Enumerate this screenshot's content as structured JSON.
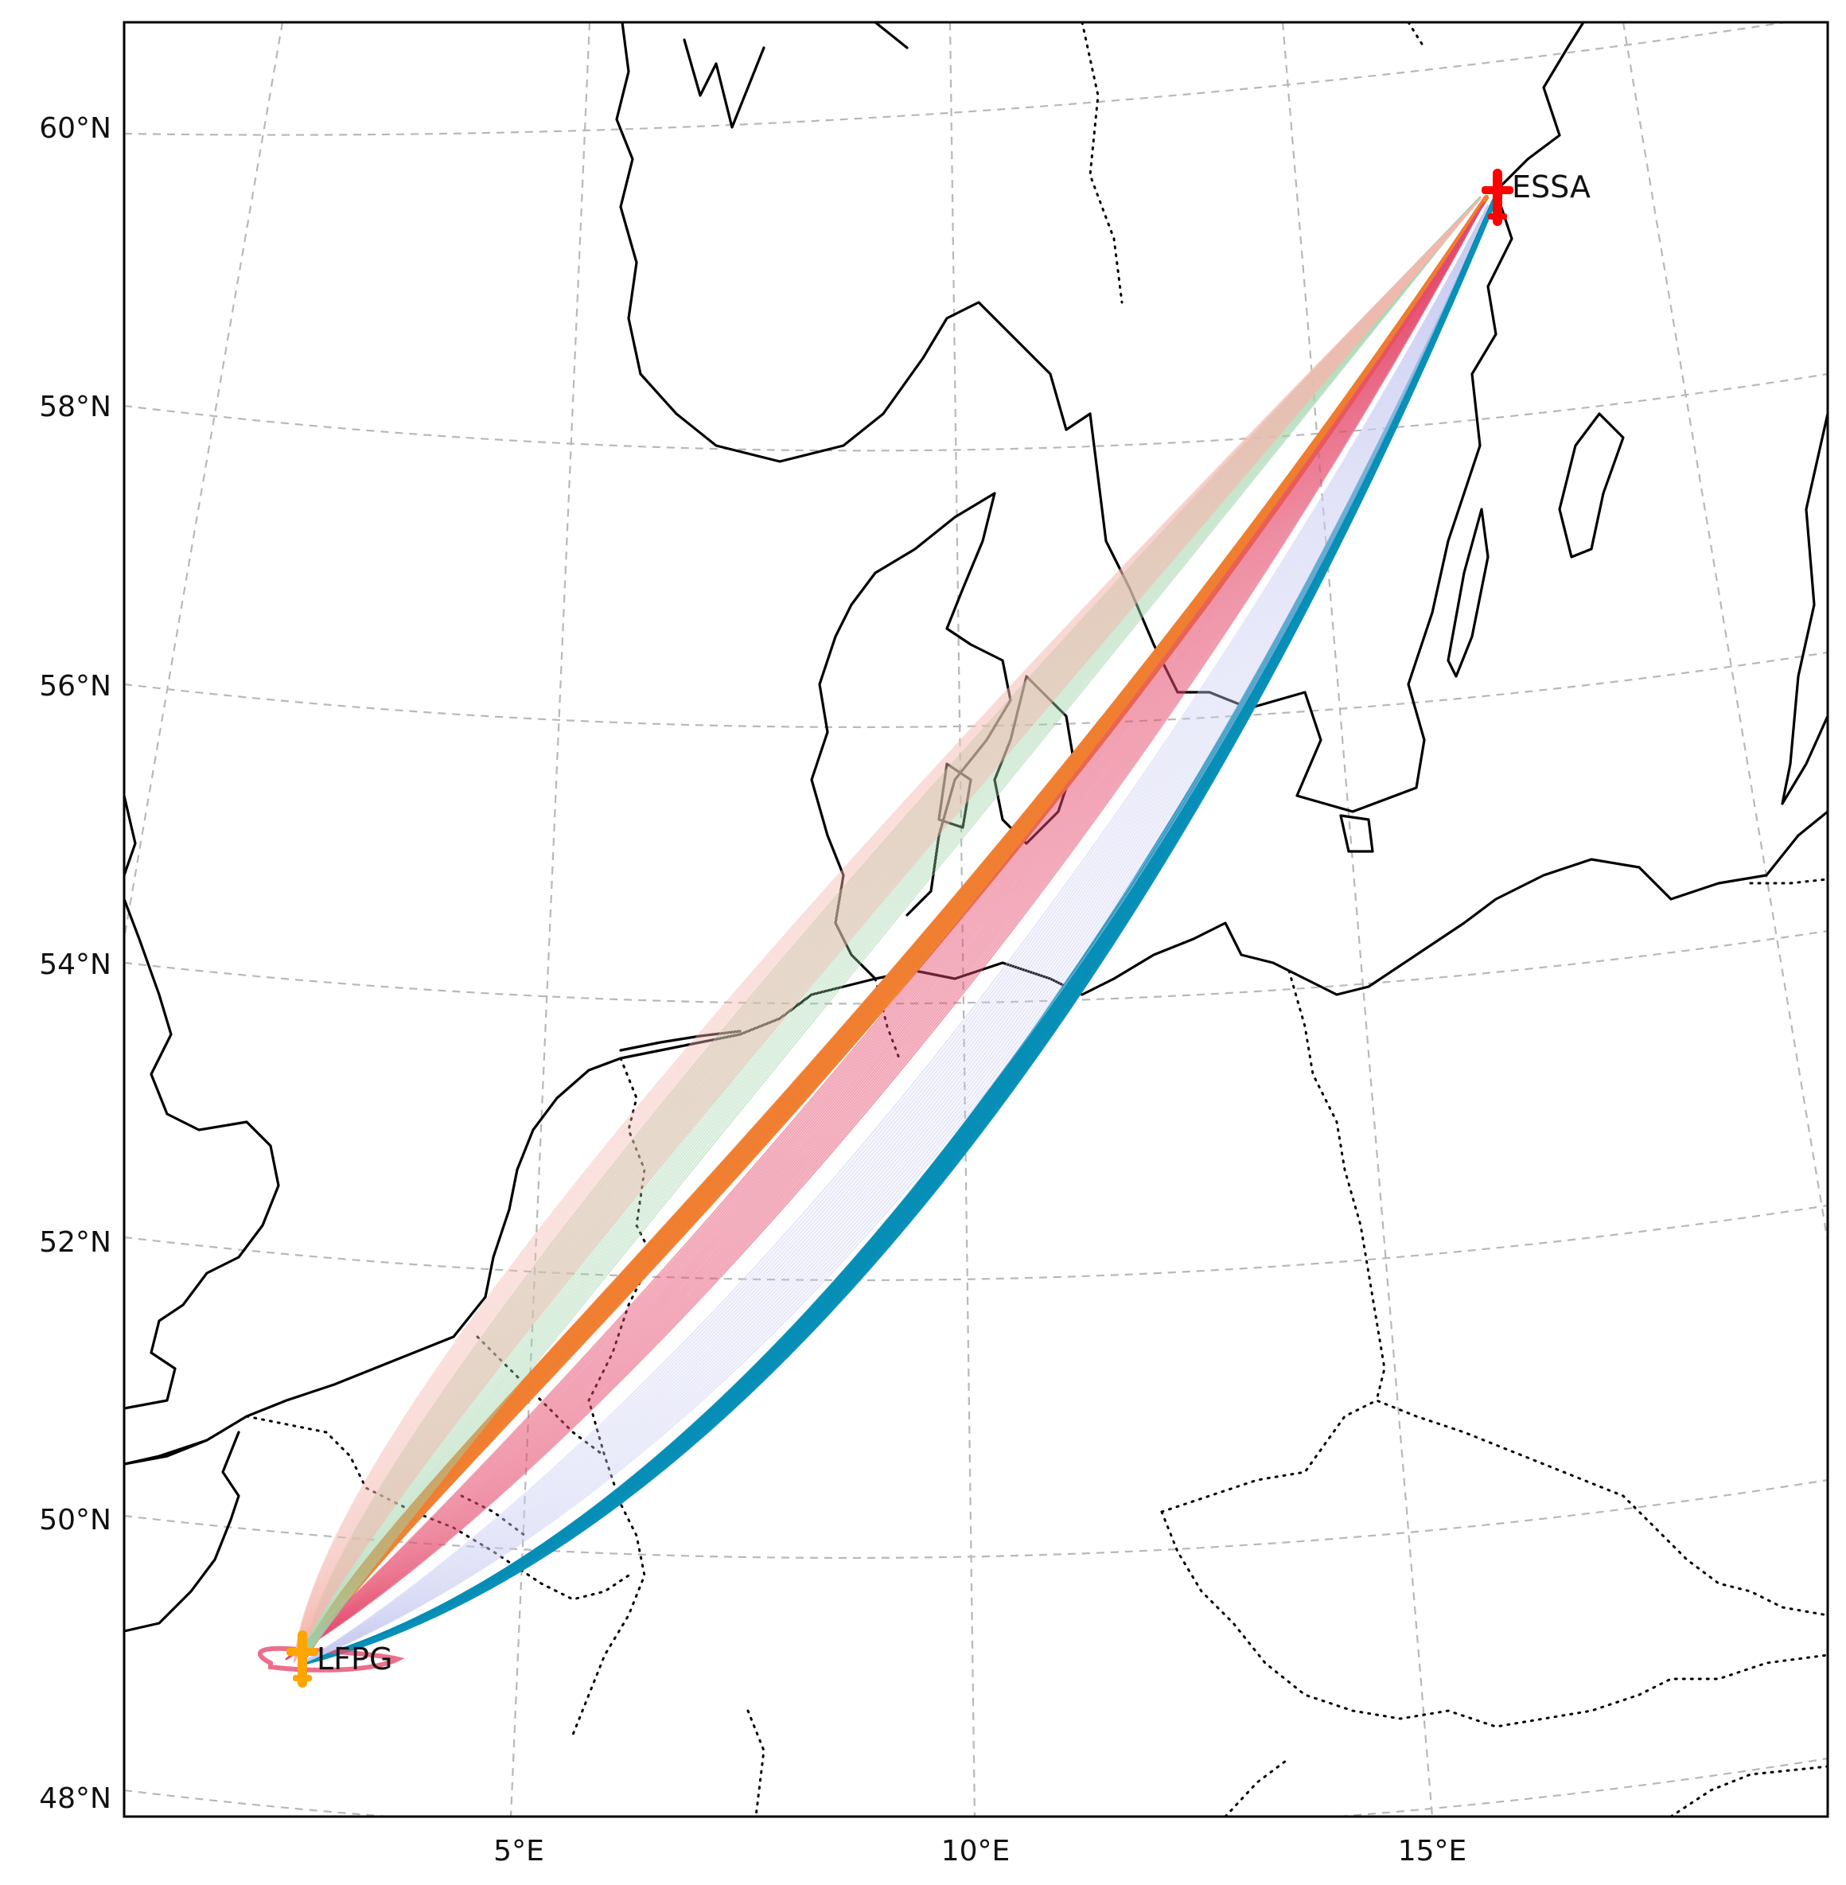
{
  "map": {
    "lat_labels": [
      "60°N",
      "58°N",
      "56°N",
      "54°N",
      "52°N",
      "50°N",
      "48°N"
    ],
    "lon_labels": [
      "5°E",
      "10°E",
      "15°E"
    ],
    "origin": {
      "code": "LFPG",
      "color": "#ffa500"
    },
    "destination": {
      "code": "ESSA",
      "color": "#ff0000"
    },
    "flows": [
      {
        "color": "#f07f33"
      },
      {
        "color": "#0a8fb8"
      },
      {
        "color": "#e64b6e"
      },
      {
        "color": "#9fd3a8"
      },
      {
        "color": "#f4b7b0"
      },
      {
        "color": "#c9cdf1"
      }
    ],
    "gridlines": true
  }
}
